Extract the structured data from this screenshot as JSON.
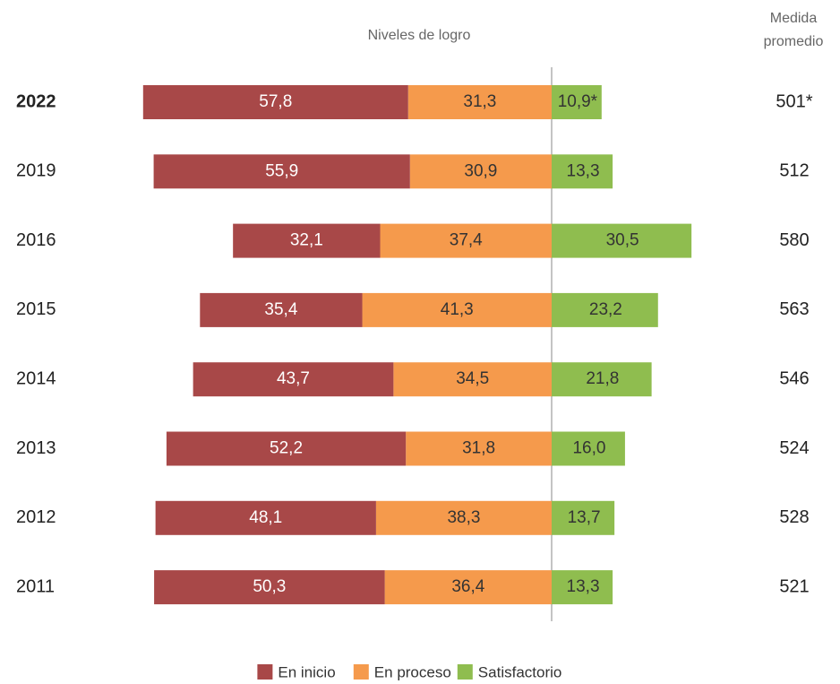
{
  "chart_data": {
    "type": "diverging-bar",
    "title": "Niveles de logro",
    "categories": [
      "2022",
      "2019",
      "2016",
      "2015",
      "2014",
      "2013",
      "2012",
      "2011"
    ],
    "series": [
      {
        "name": "En inicio",
        "color": "#a84848",
        "side": "left",
        "values": [
          57.8,
          55.9,
          32.1,
          35.4,
          43.7,
          52.2,
          48.1,
          50.3
        ],
        "value_labels": [
          "57,8",
          "55,9",
          "32,1",
          "35,4",
          "43,7",
          "52,2",
          "48,1",
          "50,3"
        ]
      },
      {
        "name": "En proceso",
        "color": "#f59a4c",
        "side": "left",
        "values": [
          31.3,
          30.9,
          37.4,
          41.3,
          34.5,
          31.8,
          38.3,
          36.4
        ],
        "value_labels": [
          "31,3",
          "30,9",
          "37,4",
          "41,3",
          "34,5",
          "31,8",
          "38,3",
          "36,4"
        ]
      },
      {
        "name": "Satisfactorio",
        "color": "#8fbd4f",
        "side": "right",
        "values": [
          10.9,
          13.3,
          30.5,
          23.2,
          21.8,
          16.0,
          13.7,
          13.3
        ],
        "value_labels": [
          "10,9*",
          "13,3",
          "30,5",
          "23,2",
          "21,8",
          "16,0",
          "13,7",
          "13,3"
        ]
      }
    ],
    "mean_scores": {
      "label": "Medida promedio",
      "values": [
        501,
        512,
        580,
        563,
        546,
        524,
        528,
        521
      ],
      "value_labels": [
        "501*",
        "512",
        "580",
        "563",
        "546",
        "524",
        "528",
        "521"
      ]
    }
  }
}
